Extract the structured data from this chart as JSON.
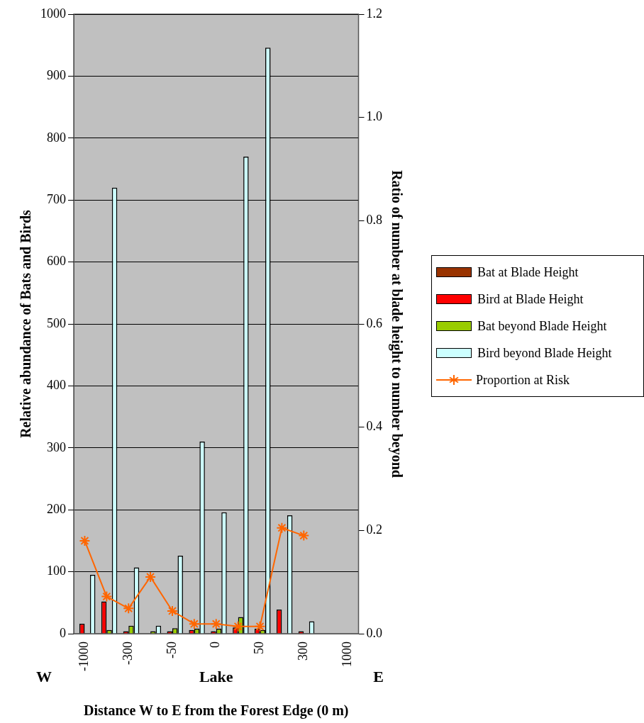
{
  "chart_data": {
    "type": "bar",
    "xlabel": "Distance W to E from the Forest Edge (0 m)",
    "ylabel": "Relative abundance of Bats and Birds",
    "y2label": "Ratio of number at blade height to number beyond",
    "annotations": [
      "W",
      "Lake",
      "E"
    ],
    "categories": [
      "-1000",
      null,
      "-300",
      null,
      "-50",
      null,
      "0",
      null,
      "50",
      null,
      "300",
      null,
      "1000"
    ],
    "series": [
      {
        "name": "Bat at Blade Height",
        "color": "#993300",
        "values": [
          null,
          null,
          null,
          null,
          null,
          null,
          null,
          null,
          null,
          null,
          null,
          null,
          null
        ]
      },
      {
        "name": "Bird at Blade Height",
        "color": "#ff0000",
        "values": [
          16,
          52,
          4,
          null,
          4,
          6,
          4,
          10,
          8,
          39,
          4,
          null,
          null
        ]
      },
      {
        "name": "Bat beyond Blade Height",
        "color": "#99cc00",
        "values": [
          null,
          6,
          13,
          4,
          9,
          8,
          8,
          27,
          6,
          null,
          null,
          null,
          null
        ]
      },
      {
        "name": "Bird beyond Blade Height",
        "color": "#ccffff",
        "values": [
          95,
          720,
          107,
          13,
          126,
          310,
          196,
          770,
          946,
          191,
          20,
          null,
          null
        ]
      },
      {
        "name": "Proportion at Risk",
        "type": "line",
        "axis": "y2",
        "color": "#ff6600",
        "marker": "cross",
        "values": [
          0.18,
          0.072,
          0.049,
          0.11,
          0.044,
          0.019,
          0.019,
          0.014,
          0.014,
          0.205,
          0.19,
          null,
          null
        ]
      }
    ],
    "ylim": [
      0,
      1000
    ],
    "yticks": [
      0,
      100,
      200,
      300,
      400,
      500,
      600,
      700,
      800,
      900,
      1000
    ],
    "y2lim": [
      0,
      1.2
    ],
    "y2ticks": [
      {
        "value": 0,
        "label": "0.0"
      },
      {
        "value": 0.2,
        "label": "0.2"
      },
      {
        "value": 0.4,
        "label": "0.4"
      },
      {
        "value": 0.6,
        "label": "0.6"
      },
      {
        "value": 0.8,
        "label": "0.8"
      },
      {
        "value": 1,
        "label": "1.0"
      },
      {
        "value": 1.2,
        "label": "1.2"
      }
    ],
    "grid": "y",
    "legend": "right"
  }
}
